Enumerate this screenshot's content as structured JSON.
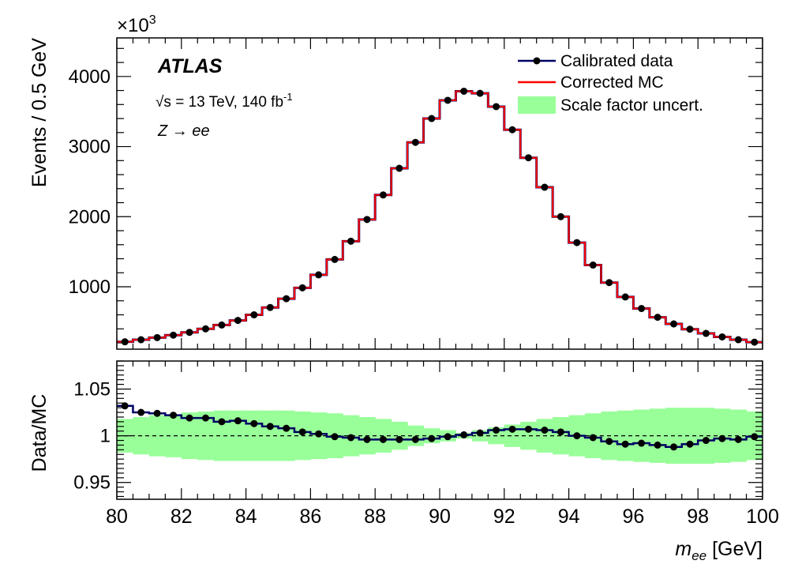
{
  "chart_data": [
    {
      "type": "line",
      "panel": "main",
      "title": "",
      "xlabel_var": "m",
      "xlabel_sub": "ee",
      "xlabel_unit": " [GeV]",
      "ylabel": "Events / 0.5 GeV",
      "y_multiplier": "×10",
      "y_multiplier_exp": "3",
      "xlim": [
        80,
        100
      ],
      "ylim": [
        110,
        4550
      ],
      "x_ticks": [
        80,
        82,
        84,
        86,
        88,
        90,
        92,
        94,
        96,
        98,
        100
      ],
      "y_ticks": [
        1000,
        2000,
        3000,
        4000
      ],
      "bin_width": 0.5,
      "x": [
        80.25,
        80.75,
        81.25,
        81.75,
        82.25,
        82.75,
        83.25,
        83.75,
        84.25,
        84.75,
        85.25,
        85.75,
        86.25,
        86.75,
        87.25,
        87.75,
        88.25,
        88.75,
        89.25,
        89.75,
        90.25,
        90.75,
        91.25,
        91.75,
        92.25,
        92.75,
        93.25,
        93.75,
        94.25,
        94.75,
        95.25,
        95.75,
        96.25,
        96.75,
        97.25,
        97.75,
        98.25,
        98.75,
        99.25,
        99.75
      ],
      "series": [
        {
          "name": "Calibrated data",
          "color": "#000066",
          "values": [
            215,
            245,
            275,
            310,
            350,
            400,
            455,
            520,
            600,
            705,
            830,
            985,
            1170,
            1390,
            1650,
            1960,
            2310,
            2690,
            3060,
            3400,
            3660,
            3790,
            3760,
            3570,
            3240,
            2840,
            2420,
            2000,
            1630,
            1310,
            1060,
            855,
            690,
            565,
            470,
            395,
            335,
            285,
            245,
            210
          ]
        },
        {
          "name": "Corrected MC",
          "color": "#ff0000",
          "values": [
            215,
            245,
            275,
            310,
            350,
            400,
            455,
            520,
            600,
            705,
            830,
            985,
            1170,
            1390,
            1650,
            1960,
            2310,
            2690,
            3060,
            3400,
            3660,
            3790,
            3760,
            3570,
            3240,
            2840,
            2420,
            2000,
            1630,
            1310,
            1060,
            855,
            690,
            565,
            470,
            395,
            335,
            285,
            245,
            210
          ]
        }
      ],
      "legend": [
        {
          "label": "Calibrated data",
          "style": "marker-line",
          "color": "#000066"
        },
        {
          "label": "Corrected MC",
          "style": "line",
          "color": "#ff0000"
        },
        {
          "label": "Scale factor uncert.",
          "style": "band",
          "color": "#99ff99"
        }
      ],
      "legend_position": "top-right",
      "annotations": {
        "experiment": "ATLAS",
        "energy_prefix": "√s = 13 TeV, 140 fb",
        "energy_exp": "-1",
        "process_z": "Z",
        "process_arrow": " → ",
        "process_ee": "ee"
      }
    },
    {
      "type": "line",
      "panel": "ratio",
      "ylabel": "Data/MC",
      "xlim": [
        80,
        100
      ],
      "ylim": [
        0.932,
        1.08
      ],
      "y_ticks": [
        0.95,
        1,
        1.05
      ],
      "y_tick_labels": [
        "0.95",
        "1",
        "1.05"
      ],
      "reference_line": 1.0,
      "x": [
        80.25,
        80.75,
        81.25,
        81.75,
        82.25,
        82.75,
        83.25,
        83.75,
        84.25,
        84.75,
        85.25,
        85.75,
        86.25,
        86.75,
        87.25,
        87.75,
        88.25,
        88.75,
        89.25,
        89.75,
        90.25,
        90.75,
        91.25,
        91.75,
        92.25,
        92.75,
        93.25,
        93.75,
        94.25,
        94.75,
        95.25,
        95.75,
        96.25,
        96.75,
        97.25,
        97.75,
        98.25,
        98.75,
        99.25,
        99.75
      ],
      "values": [
        1.032,
        1.025,
        1.024,
        1.022,
        1.019,
        1.019,
        1.015,
        1.016,
        1.013,
        1.01,
        1.008,
        1.004,
        1.002,
        0.999,
        0.998,
        0.996,
        0.996,
        0.996,
        0.996,
        0.997,
        0.999,
        1.001,
        1.003,
        1.006,
        1.007,
        1.007,
        1.006,
        1.004,
        1.0,
        0.998,
        0.994,
        0.991,
        0.992,
        0.99,
        0.988,
        0.991,
        0.995,
        0.997,
        0.996,
        0.999
      ],
      "band_halfwidth": [
        0.018,
        0.02,
        0.022,
        0.023,
        0.025,
        0.026,
        0.027,
        0.027,
        0.027,
        0.027,
        0.027,
        0.026,
        0.025,
        0.024,
        0.022,
        0.02,
        0.018,
        0.015,
        0.011,
        0.008,
        0.006,
        0.003,
        0.006,
        0.009,
        0.012,
        0.015,
        0.018,
        0.02,
        0.022,
        0.024,
        0.026,
        0.027,
        0.028,
        0.029,
        0.03,
        0.03,
        0.03,
        0.029,
        0.028,
        0.026
      ],
      "band_color": "#99ff99"
    }
  ]
}
